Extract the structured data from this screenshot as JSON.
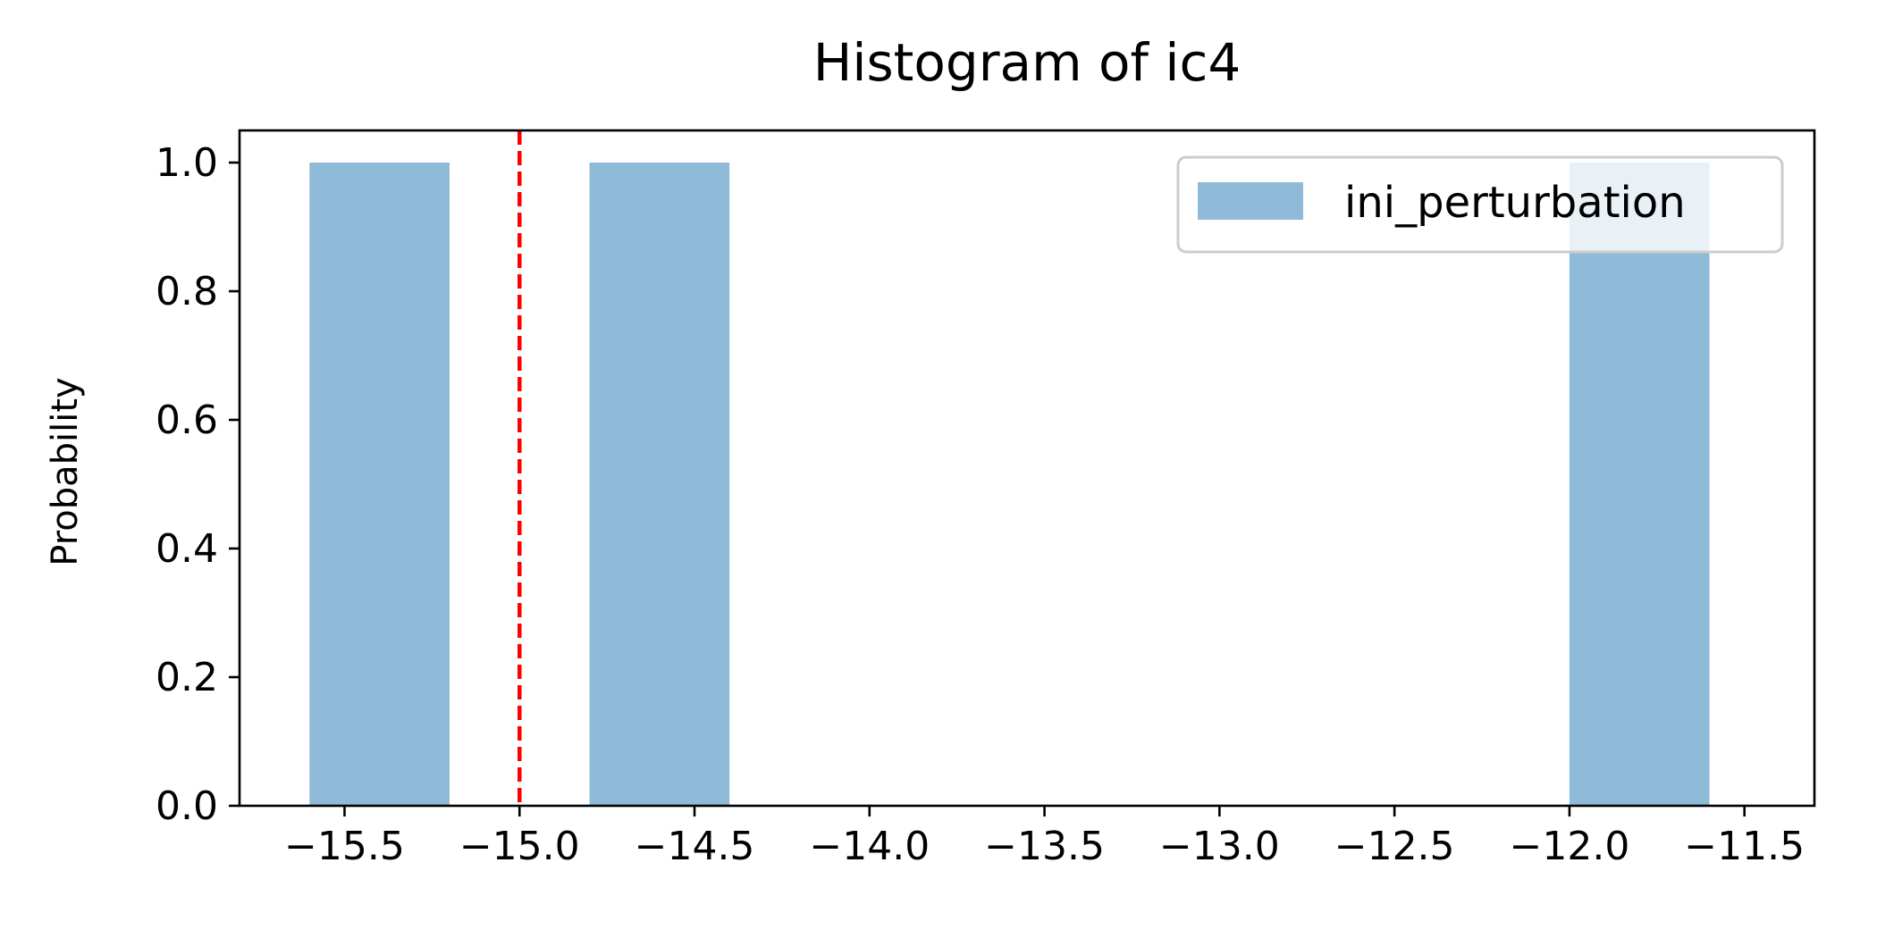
{
  "chart_data": {
    "type": "bar",
    "title": "Histogram of ic4",
    "xlabel": "",
    "ylabel": "Probability",
    "xlim": [
      -15.8,
      -11.3
    ],
    "ylim": [
      0.0,
      1.05
    ],
    "x_ticks": [
      -15.5,
      -15.0,
      -14.5,
      -14.0,
      -13.5,
      -13.0,
      -12.5,
      -12.0,
      -11.5
    ],
    "x_tick_labels": [
      "−15.5",
      "−15.0",
      "−14.5",
      "−14.0",
      "−13.5",
      "−13.0",
      "−12.5",
      "−12.0",
      "−11.5"
    ],
    "y_ticks": [
      0.0,
      0.2,
      0.4,
      0.6,
      0.8,
      1.0
    ],
    "y_tick_labels": [
      "0.0",
      "0.2",
      "0.4",
      "0.6",
      "0.8",
      "1.0"
    ],
    "grid": false,
    "legend_position": "top-right",
    "series": [
      {
        "name": "ini_perturbation",
        "color": "#8fbad8",
        "bins": [
          {
            "x_start": -15.6,
            "x_end": -15.2,
            "value": 1.0
          },
          {
            "x_start": -14.8,
            "x_end": -14.4,
            "value": 1.0
          },
          {
            "x_start": -12.0,
            "x_end": -11.6,
            "value": 1.0
          }
        ]
      }
    ],
    "reference_line": {
      "x": -15.0,
      "color": "#ff0000",
      "style": "dashed"
    }
  }
}
